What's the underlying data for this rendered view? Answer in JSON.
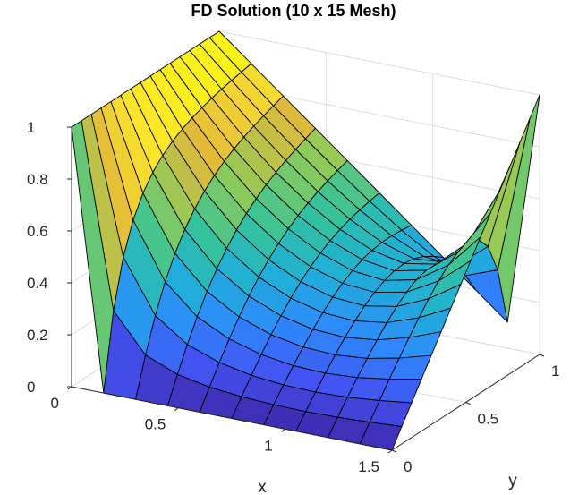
{
  "chart_data": {
    "type": "surface",
    "title": "FD Solution (10 x 15 Mesh)",
    "xlabel": "x",
    "ylabel": "y",
    "zlabel": "",
    "xlim": [
      0,
      1.5
    ],
    "ylim": [
      0,
      1
    ],
    "zlim": [
      0,
      1
    ],
    "x_ticks": [
      "0",
      "0.5",
      "1",
      "1.5"
    ],
    "y_ticks": [
      "0",
      "0.5",
      "1"
    ],
    "z_ticks": [
      "0",
      "0.2",
      "0.4",
      "0.6",
      "0.8",
      "1"
    ],
    "mesh": {
      "nx": 10,
      "ny": 15
    },
    "boundary_conditions": {
      "x0": "z = 1 along entire edge x = 0",
      "x1_5": "z = y along edge x = 1.5",
      "y0": "z = 0",
      "y1": "z = 1 - x/1.5"
    },
    "colormap": "parula",
    "colormap_stops": [
      "#3e26a8",
      "#4352f1",
      "#2d8afc",
      "#1fb0d6",
      "#35c29b",
      "#8cca5a",
      "#e3b93a",
      "#fae42c",
      "#f9fb0e"
    ],
    "grid": true
  }
}
